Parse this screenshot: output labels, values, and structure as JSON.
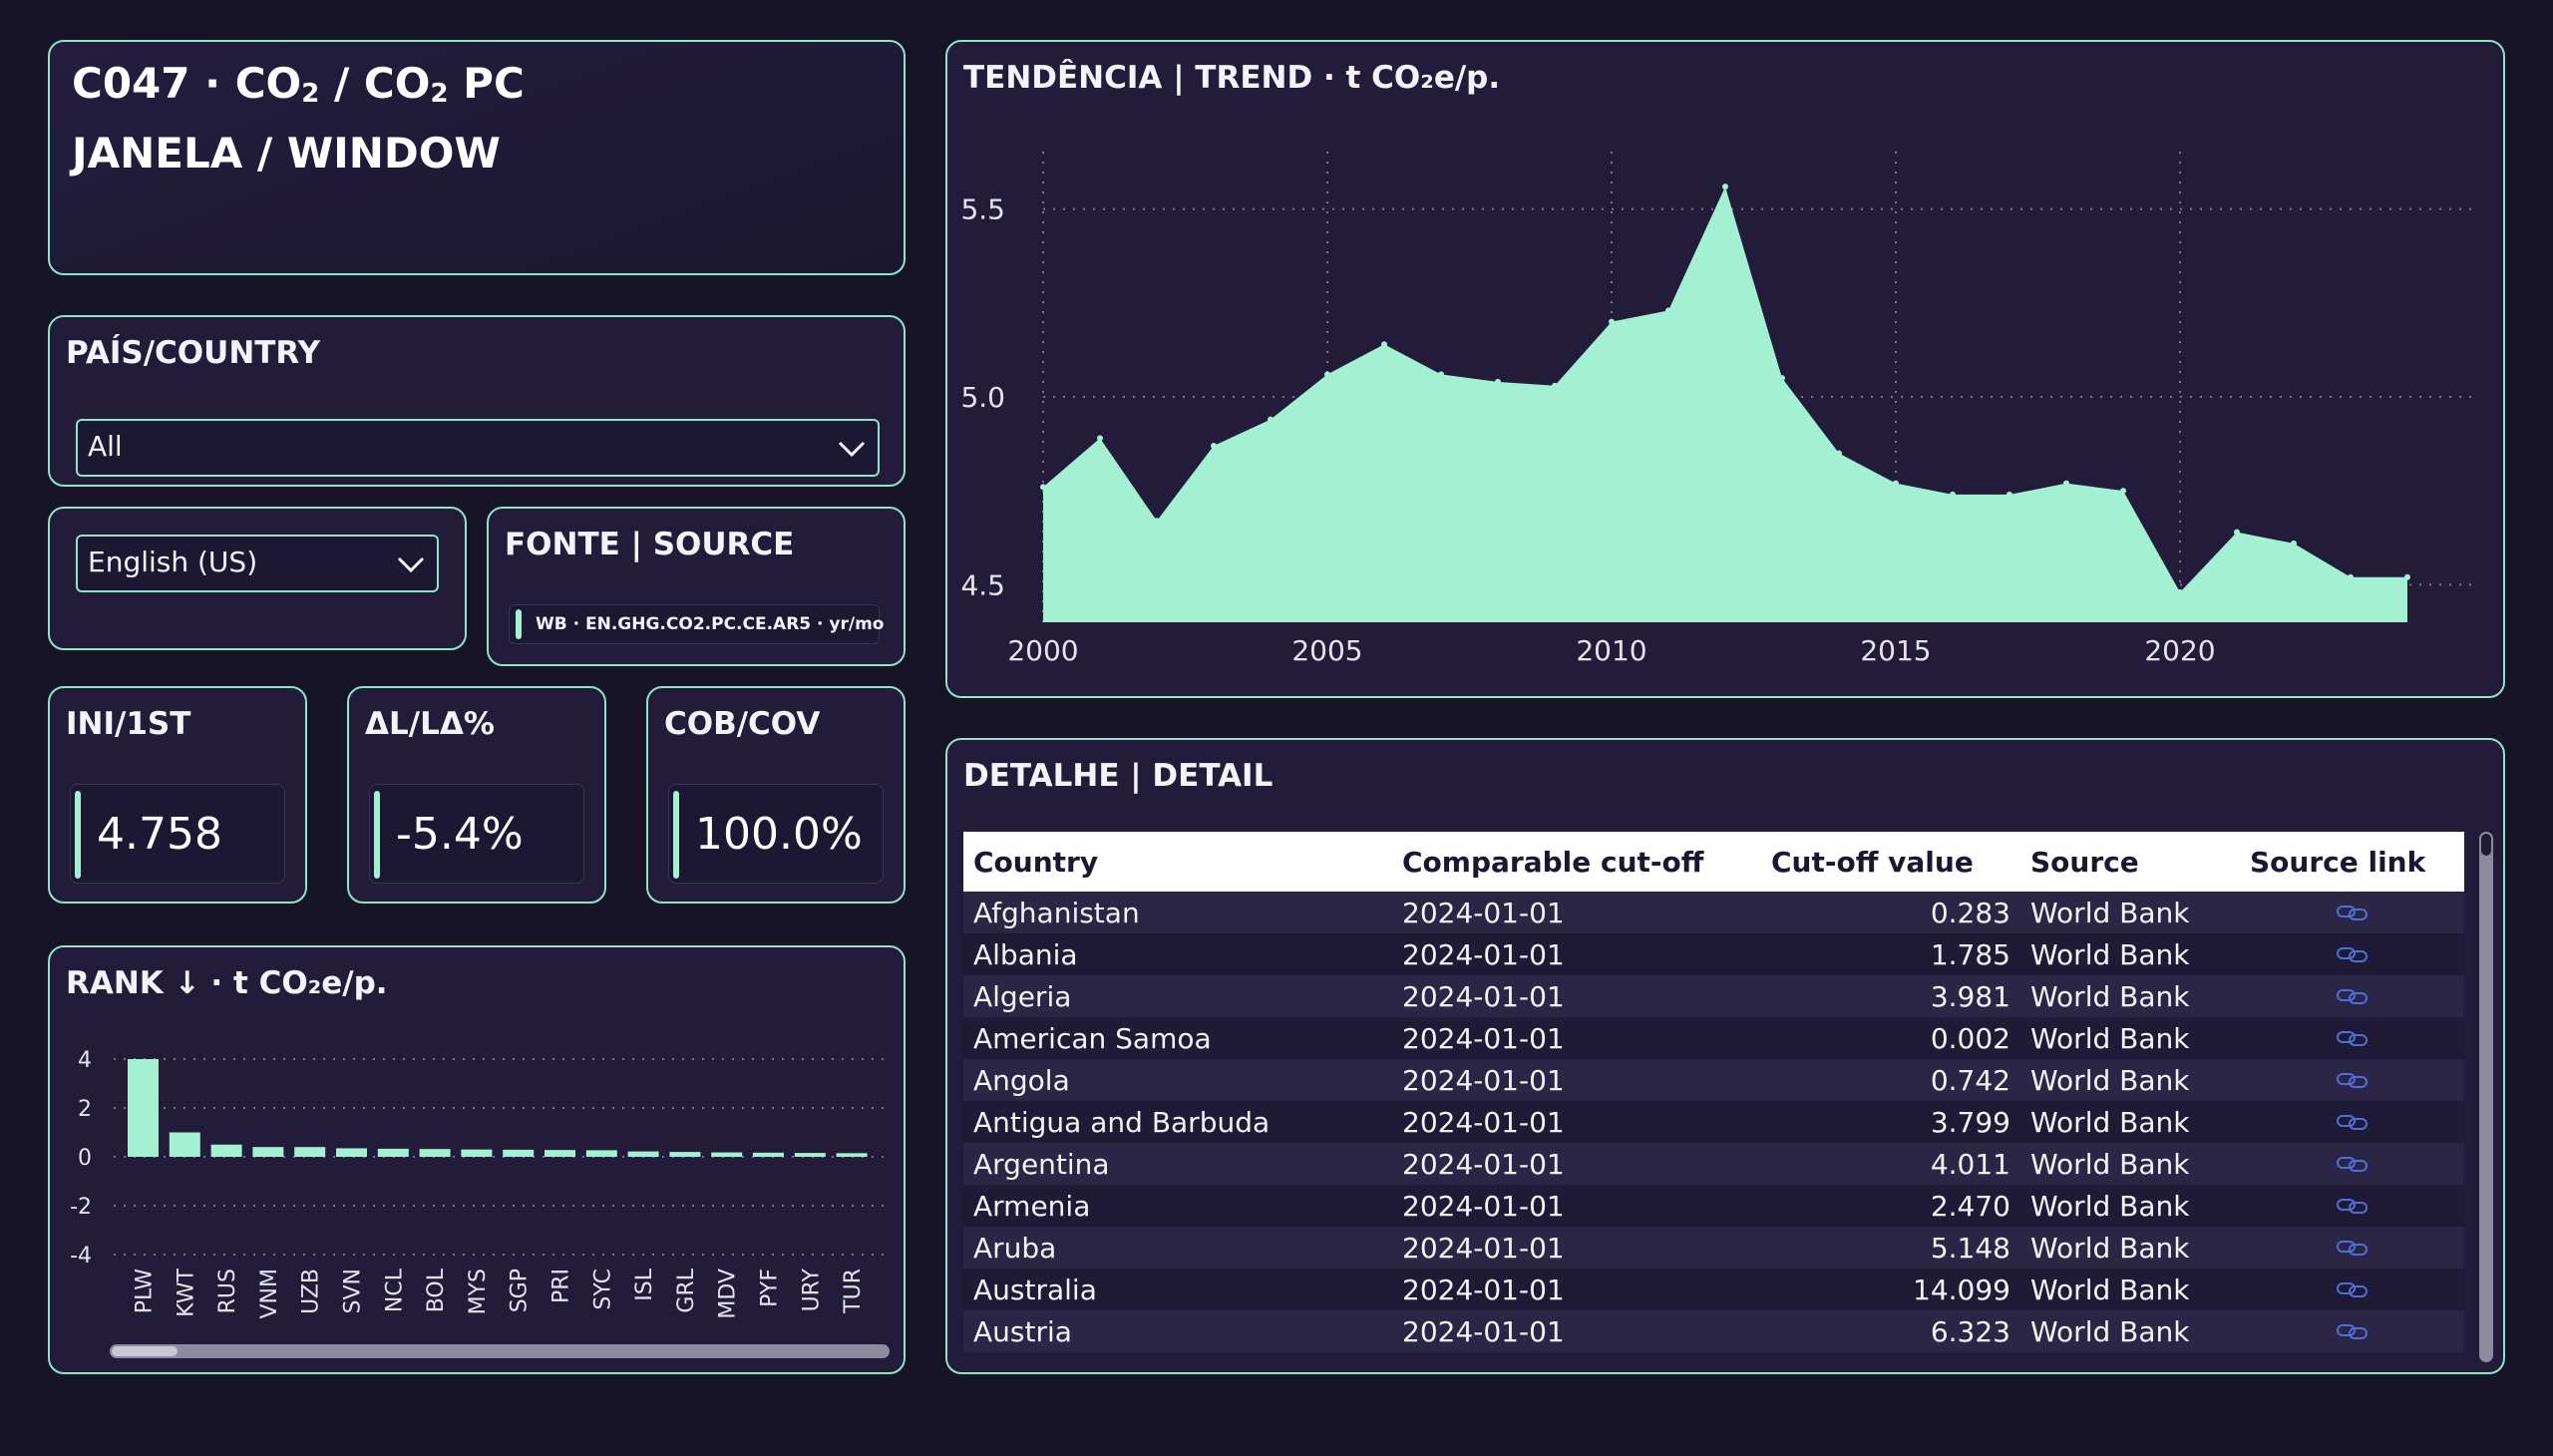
{
  "title": {
    "line1_prefix": "C047 · CO",
    "line1_mid": " / CO",
    "line1_suffix": " PC",
    "sub2": "2",
    "line2": "JANELA / WINDOW"
  },
  "country_filter": {
    "label": "PAÍS/COUNTRY",
    "selected": "All"
  },
  "language_filter": {
    "selected": "English (US)"
  },
  "source": {
    "label": "FONTE | SOURCE",
    "value": "WB · EN.GHG.CO2.PC.CE.AR5 · yr/mo"
  },
  "kpis": [
    {
      "label": "INI/1ST",
      "value": "4.758"
    },
    {
      "label": "ΔL/LΔ%",
      "value": "-5.4%"
    },
    {
      "label": "COB/COV",
      "value": "100.0%"
    }
  ],
  "colors": {
    "accent": "#a4f0d2",
    "border": "#8fe3c6",
    "bg": "#171427",
    "card": "#221c3a"
  },
  "trend": {
    "title": "TENDÊNCIA | TREND · t CO₂e/p.",
    "chart_data": {
      "type": "area",
      "x": [
        2000,
        2001,
        2002,
        2003,
        2004,
        2005,
        2006,
        2007,
        2008,
        2009,
        2010,
        2011,
        2012,
        2013,
        2014,
        2015,
        2016,
        2017,
        2018,
        2019,
        2020,
        2021,
        2022,
        2023,
        2024
      ],
      "values": [
        4.76,
        4.89,
        4.67,
        4.87,
        4.94,
        5.06,
        5.14,
        5.06,
        5.04,
        5.03,
        5.2,
        5.23,
        5.56,
        5.05,
        4.85,
        4.77,
        4.74,
        4.74,
        4.77,
        4.75,
        4.48,
        4.64,
        4.61,
        4.52,
        4.52
      ],
      "xlim": [
        2000,
        2024
      ],
      "ylim": [
        4.4,
        5.6
      ],
      "xticks": [
        "2000",
        "2005",
        "2010",
        "2015",
        "2020"
      ],
      "yticks": [
        "4.5",
        "5.0",
        "5.5"
      ],
      "grid": true
    }
  },
  "rank": {
    "title": "RANK ↓ · t CO₂e/p.",
    "chart_data": {
      "type": "bar",
      "categories": [
        "PLW",
        "KWT",
        "RUS",
        "VNM",
        "UZB",
        "SVN",
        "NCL",
        "BOL",
        "MYS",
        "SGP",
        "PRI",
        "SYC",
        "ISL",
        "GRL",
        "MDV",
        "PYF",
        "URY",
        "TUR"
      ],
      "values": [
        4.0,
        1.0,
        0.5,
        0.4,
        0.4,
        0.35,
        0.33,
        0.32,
        0.3,
        0.29,
        0.28,
        0.27,
        0.22,
        0.2,
        0.18,
        0.17,
        0.16,
        0.15
      ],
      "ylim": [
        -4,
        4
      ],
      "yticks": [
        "4",
        "2",
        "0",
        "-2",
        "-4"
      ],
      "grid": true
    }
  },
  "detail": {
    "title": "DETALHE | DETAIL",
    "columns": [
      "Country",
      "Comparable cut-off",
      "Cut-off value",
      "Source",
      "Source link"
    ],
    "rows": [
      {
        "country": "Afghanistan",
        "cutoff": "2024-01-01",
        "value": "0.283",
        "source": "World Bank"
      },
      {
        "country": "Albania",
        "cutoff": "2024-01-01",
        "value": "1.785",
        "source": "World Bank"
      },
      {
        "country": "Algeria",
        "cutoff": "2024-01-01",
        "value": "3.981",
        "source": "World Bank"
      },
      {
        "country": "American Samoa",
        "cutoff": "2024-01-01",
        "value": "0.002",
        "source": "World Bank"
      },
      {
        "country": "Angola",
        "cutoff": "2024-01-01",
        "value": "0.742",
        "source": "World Bank"
      },
      {
        "country": "Antigua and Barbuda",
        "cutoff": "2024-01-01",
        "value": "3.799",
        "source": "World Bank"
      },
      {
        "country": "Argentina",
        "cutoff": "2024-01-01",
        "value": "4.011",
        "source": "World Bank"
      },
      {
        "country": "Armenia",
        "cutoff": "2024-01-01",
        "value": "2.470",
        "source": "World Bank"
      },
      {
        "country": "Aruba",
        "cutoff": "2024-01-01",
        "value": "5.148",
        "source": "World Bank"
      },
      {
        "country": "Australia",
        "cutoff": "2024-01-01",
        "value": "14.099",
        "source": "World Bank"
      },
      {
        "country": "Austria",
        "cutoff": "2024-01-01",
        "value": "6.323",
        "source": "World Bank"
      }
    ]
  }
}
